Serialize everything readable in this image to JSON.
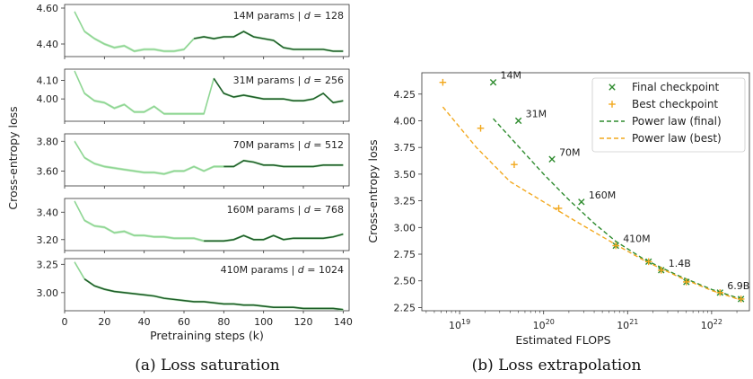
{
  "colors": {
    "line_light": "#8fd694",
    "line_dark": "#1f5f2a",
    "band": "#cdeecd",
    "final_marker": "#2e8b2e",
    "best_marker": "#f2a81d",
    "final_law": "#2e8b2e",
    "best_law": "#f2a81d"
  },
  "chart_data": [
    {
      "type": "line",
      "caption": "(a) Loss saturation",
      "xlabel": "Pretraining steps (k)",
      "ylabel": "Cross-entropy loss",
      "xlim": [
        0,
        143
      ],
      "x_ticks": [
        "0",
        "20",
        "40",
        "60",
        "80",
        "100",
        "120",
        "140"
      ],
      "x": [
        5,
        10,
        15,
        20,
        25,
        30,
        35,
        40,
        45,
        50,
        55,
        60,
        65,
        70,
        75,
        80,
        85,
        90,
        95,
        100,
        105,
        110,
        115,
        120,
        125,
        130,
        135,
        140
      ],
      "panels": [
        {
          "label_prefix": "14M params | ",
          "label_var": "d",
          "label_suffix": " = 128",
          "ylim": [
            4.33,
            4.62
          ],
          "y_ticks": [
            "4.40",
            "4.60"
          ],
          "y_tick_values": [
            4.4,
            4.6
          ],
          "split_index": 12,
          "values": [
            4.58,
            4.47,
            4.43,
            4.4,
            4.38,
            4.39,
            4.36,
            4.37,
            4.37,
            4.36,
            4.36,
            4.37,
            4.43,
            4.44,
            4.43,
            4.44,
            4.44,
            4.47,
            4.44,
            4.43,
            4.42,
            4.38,
            4.37,
            4.37,
            4.37,
            4.37,
            4.36,
            4.36
          ]
        },
        {
          "label_prefix": "31M params | ",
          "label_var": "d",
          "label_suffix": " = 256",
          "ylim": [
            3.88,
            4.16
          ],
          "y_ticks": [
            "4.00",
            "4.10"
          ],
          "y_tick_values": [
            4.0,
            4.1
          ],
          "split_index": 14,
          "values": [
            4.15,
            4.03,
            3.99,
            3.98,
            3.95,
            3.97,
            3.93,
            3.93,
            3.96,
            3.92,
            3.92,
            3.92,
            3.92,
            3.92,
            4.11,
            4.03,
            4.01,
            4.02,
            4.01,
            4.0,
            4.0,
            4.0,
            3.99,
            3.99,
            4.0,
            4.03,
            3.98,
            3.99
          ]
        },
        {
          "label_prefix": "70M params | ",
          "label_var": "d",
          "label_suffix": " = 512",
          "ylim": [
            3.5,
            3.85
          ],
          "y_ticks": [
            "3.60",
            "3.80"
          ],
          "y_tick_values": [
            3.6,
            3.8
          ],
          "split_index": 15,
          "values": [
            3.8,
            3.69,
            3.65,
            3.63,
            3.62,
            3.61,
            3.6,
            3.59,
            3.59,
            3.58,
            3.6,
            3.6,
            3.63,
            3.6,
            3.63,
            3.63,
            3.63,
            3.67,
            3.66,
            3.64,
            3.64,
            3.63,
            3.63,
            3.63,
            3.63,
            3.64,
            3.64,
            3.64
          ]
        },
        {
          "label_prefix": "160M params | ",
          "label_var": "d",
          "label_suffix": " = 768",
          "ylim": [
            3.12,
            3.5
          ],
          "y_ticks": [
            "3.20",
            "3.40"
          ],
          "y_tick_values": [
            3.2,
            3.4
          ],
          "split_index": 13,
          "values": [
            3.48,
            3.34,
            3.3,
            3.29,
            3.25,
            3.26,
            3.23,
            3.23,
            3.22,
            3.22,
            3.21,
            3.21,
            3.21,
            3.19,
            3.19,
            3.19,
            3.2,
            3.23,
            3.2,
            3.2,
            3.23,
            3.2,
            3.21,
            3.21,
            3.21,
            3.21,
            3.22,
            3.24
          ]
        },
        {
          "label_prefix": "410M params | ",
          "label_var": "d",
          "label_suffix": " = 1024",
          "ylim": [
            2.84,
            3.3
          ],
          "y_ticks": [
            "3.00",
            "3.25"
          ],
          "y_tick_values": [
            3.0,
            3.25
          ],
          "split_index": 1,
          "values": [
            3.27,
            3.12,
            3.06,
            3.03,
            3.01,
            3.0,
            2.99,
            2.98,
            2.97,
            2.95,
            2.94,
            2.93,
            2.92,
            2.92,
            2.91,
            2.9,
            2.9,
            2.89,
            2.89,
            2.88,
            2.87,
            2.87,
            2.87,
            2.86,
            2.86,
            2.86,
            2.86,
            2.85
          ]
        }
      ]
    },
    {
      "type": "scatter",
      "caption": "(b) Loss extrapolation",
      "xlabel": "Estimated FLOPS",
      "ylabel": "Cross-entropy loss",
      "x_scale": "log",
      "xlim_exp": [
        18.55,
        22.45
      ],
      "ylim": [
        2.22,
        4.45
      ],
      "x_ticks": [
        {
          "base": "10",
          "exp": "19",
          "value_exp": 19
        },
        {
          "base": "10",
          "exp": "20",
          "value_exp": 20
        },
        {
          "base": "10",
          "exp": "21",
          "value_exp": 21
        },
        {
          "base": "10",
          "exp": "22",
          "value_exp": 22
        }
      ],
      "y_ticks": [
        "2.25",
        "2.50",
        "2.75",
        "3.00",
        "3.25",
        "3.50",
        "3.75",
        "4.00",
        "4.25"
      ],
      "y_tick_values": [
        2.25,
        2.5,
        2.75,
        3.0,
        3.25,
        3.5,
        3.75,
        4.0,
        4.25
      ],
      "legend": {
        "position": "top-right",
        "items": [
          {
            "label": "Final checkpoint",
            "kind": "x-marker",
            "color_key": "final_marker"
          },
          {
            "label": "Best checkpoint",
            "kind": "plus-marker",
            "color_key": "best_marker"
          },
          {
            "label": "Power law (final)",
            "kind": "dashed",
            "color_key": "final_law"
          },
          {
            "label": "Power law (best)",
            "kind": "dashed",
            "color_key": "best_law"
          }
        ]
      },
      "series": [
        {
          "name": "Final checkpoint",
          "x_log10": [
            19.4,
            19.7,
            20.1,
            20.45,
            20.86,
            21.25,
            21.4,
            21.7,
            22.1,
            22.35
          ],
          "y": [
            4.36,
            4.0,
            3.64,
            3.24,
            2.83,
            2.68,
            2.6,
            2.49,
            2.39,
            2.33
          ]
        },
        {
          "name": "Best checkpoint",
          "x_log10": [
            18.8,
            19.25,
            19.65,
            20.18,
            20.86,
            21.25,
            21.4,
            21.7,
            22.1,
            22.35
          ],
          "y": [
            4.36,
            3.93,
            3.59,
            3.18,
            2.83,
            2.68,
            2.6,
            2.49,
            2.39,
            2.33
          ]
        },
        {
          "name": "Power law (final)",
          "x_log10": [
            19.4,
            19.7,
            20.0,
            20.3,
            20.6,
            20.86,
            21.2,
            21.6,
            22.0,
            22.35
          ],
          "y": [
            4.02,
            3.76,
            3.5,
            3.26,
            3.04,
            2.87,
            2.7,
            2.55,
            2.42,
            2.33
          ]
        },
        {
          "name": "Power law (best)",
          "x_log10": [
            18.8,
            19.2,
            19.6,
            20.0,
            20.4,
            20.86,
            21.2,
            21.6,
            22.0,
            22.35
          ],
          "y": [
            4.13,
            3.75,
            3.43,
            3.24,
            3.05,
            2.84,
            2.69,
            2.54,
            2.41,
            2.32
          ]
        }
      ],
      "annotations": [
        {
          "text": "14M",
          "x_log10": 19.4,
          "y": 4.36
        },
        {
          "text": "31M",
          "x_log10": 19.7,
          "y": 4.0
        },
        {
          "text": "70M",
          "x_log10": 20.1,
          "y": 3.64
        },
        {
          "text": "160M",
          "x_log10": 20.45,
          "y": 3.24
        },
        {
          "text": "410M",
          "x_log10": 20.86,
          "y": 2.83
        },
        {
          "text": "1.4B",
          "x_log10": 21.4,
          "y": 2.6
        },
        {
          "text": "6.9B",
          "x_log10": 22.1,
          "y": 2.39
        }
      ]
    }
  ]
}
